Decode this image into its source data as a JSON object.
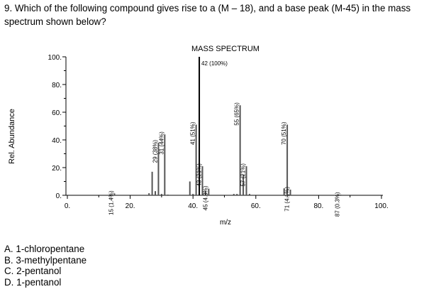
{
  "question": {
    "text": "9. Which of the following compound gives rise to a (M – 18), and a base peak (M-45) in the mass spectrum shown below?"
  },
  "answers": [
    "A. 1-chloropentane",
    "B. 3-methylpentane",
    "C. 2-pentanol",
    "D. 1-pentanol"
  ],
  "chart_data": {
    "type": "bar",
    "title": "MASS SPECTRUM",
    "xlabel": "m/z",
    "ylabel": "Rel. Abundance",
    "xlim": [
      0,
      100
    ],
    "ylim": [
      0,
      100
    ],
    "xticks": [
      0,
      20,
      40,
      60,
      80,
      100
    ],
    "xtick_labels": [
      "0.",
      "20.",
      "40.",
      "60.",
      "80.",
      "100."
    ],
    "yticks": [
      0,
      20,
      40,
      60,
      80,
      100
    ],
    "ytick_labels": [
      "0.",
      "20.",
      "40.",
      "60.",
      "80.",
      "100."
    ],
    "grid": false,
    "bar_color": "#555555",
    "peaks": [
      {
        "x": 15,
        "y": 1.4
      },
      {
        "x": 26,
        "y": 1.5
      },
      {
        "x": 27,
        "y": 17
      },
      {
        "x": 28,
        "y": 3
      },
      {
        "x": 29,
        "y": 38
      },
      {
        "x": 30,
        "y": 1
      },
      {
        "x": 31,
        "y": 44
      },
      {
        "x": 32,
        "y": 0.5
      },
      {
        "x": 39,
        "y": 10
      },
      {
        "x": 40,
        "y": 1
      },
      {
        "x": 41,
        "y": 51
      },
      {
        "x": 42,
        "y": 100
      },
      {
        "x": 43,
        "y": 21
      },
      {
        "x": 44,
        "y": 3
      },
      {
        "x": 45,
        "y": 4.8
      },
      {
        "x": 53,
        "y": 1
      },
      {
        "x": 54,
        "y": 1
      },
      {
        "x": 55,
        "y": 65
      },
      {
        "x": 56,
        "y": 15
      },
      {
        "x": 57,
        "y": 21
      },
      {
        "x": 58,
        "y": 1
      },
      {
        "x": 69,
        "y": 5
      },
      {
        "x": 70,
        "y": 51
      },
      {
        "x": 71,
        "y": 4.1
      },
      {
        "x": 87,
        "y": 0.3
      }
    ],
    "peak_labels": [
      {
        "x": 15,
        "text": "15 (1.4%)"
      },
      {
        "x": 29,
        "text": "29 (38%)"
      },
      {
        "x": 31,
        "text": "31 (44%)"
      },
      {
        "x": 41,
        "text": "41 (51%)"
      },
      {
        "x": 43,
        "text": "43 (21%)"
      },
      {
        "x": 45,
        "text": "45 (4.8%)"
      },
      {
        "x": 55,
        "text": "55 (65%)"
      },
      {
        "x": 57,
        "text": "57 (21%)"
      },
      {
        "x": 70,
        "text": "70 (51%)"
      },
      {
        "x": 71,
        "text": "71 (4.1%)"
      },
      {
        "x": 87,
        "text": "87 (0.3%)"
      }
    ],
    "base_peak_label": {
      "x": 42,
      "text": "42 (100%)"
    }
  }
}
